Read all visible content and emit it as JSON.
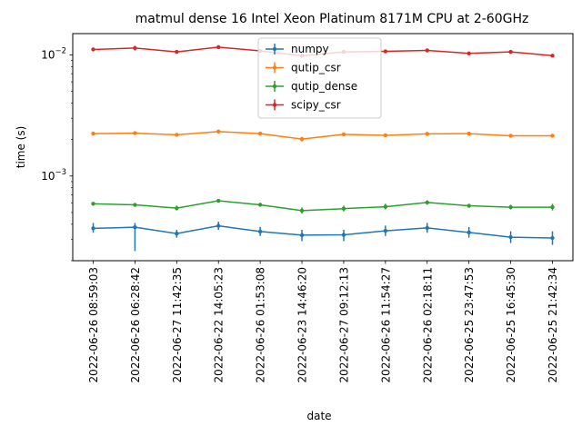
{
  "chart_data": {
    "type": "line",
    "title": "matmul dense 16 Intel Xeon Platinum 8171M CPU at 2-60GHz",
    "xlabel": "date",
    "ylabel": "time (s)",
    "yscale": "log",
    "ylim": [
      0.0002,
      0.015
    ],
    "y_tick_labels": [
      {
        "value": 0.001,
        "base": "10",
        "exp": "−3"
      },
      {
        "value": 0.01,
        "base": "10",
        "exp": "−2"
      }
    ],
    "grid": false,
    "legend_position": "top-center",
    "categories": [
      "2022-06-26 08:59:03",
      "2022-06-26 06:28:42",
      "2022-06-27 11:42:35",
      "2022-06-22 14:05:23",
      "2022-06-26 01:53:08",
      "2022-06-23 14:46:20",
      "2022-06-27 09:12:13",
      "2022-06-26 11:54:27",
      "2022-06-26 02:18:11",
      "2022-06-25 23:47:53",
      "2022-06-25 16:45:30",
      "2022-06-25 21:42:34"
    ],
    "series": [
      {
        "name": "numpy",
        "color": "#1f77b4",
        "values": [
          0.00037,
          0.000378,
          0.000335,
          0.000388,
          0.000348,
          0.000325,
          0.000327,
          0.000353,
          0.000373,
          0.000342,
          0.000313,
          0.000308
        ],
        "err_low": [
          0.00034,
          0.00024,
          0.00031,
          0.00036,
          0.00032,
          0.00029,
          0.00029,
          0.00032,
          0.00034,
          0.00031,
          0.00028,
          0.00027
        ],
        "err_high": [
          0.00041,
          0.00041,
          0.00036,
          0.00042,
          0.00038,
          0.00036,
          0.00036,
          0.00039,
          0.00041,
          0.00038,
          0.00035,
          0.00035
        ]
      },
      {
        "name": "qutip_csr",
        "color": "#ff7f0e",
        "values": [
          0.00224,
          0.00226,
          0.00219,
          0.00233,
          0.00224,
          0.00202,
          0.00221,
          0.00217,
          0.00223,
          0.00224,
          0.00215,
          0.00215
        ],
        "err_low": [
          0.00222,
          0.00224,
          0.00217,
          0.0023,
          0.00221,
          0.00193,
          0.00218,
          0.00214,
          0.0022,
          0.00221,
          0.00212,
          0.00208
        ],
        "err_high": [
          0.00226,
          0.00228,
          0.00221,
          0.00236,
          0.00227,
          0.00211,
          0.00224,
          0.0022,
          0.00226,
          0.00227,
          0.00218,
          0.00222
        ]
      },
      {
        "name": "qutip_dense",
        "color": "#2ca02c",
        "values": [
          0.00059,
          0.000578,
          0.000543,
          0.000625,
          0.000579,
          0.000518,
          0.000538,
          0.000558,
          0.000605,
          0.000568,
          0.000553,
          0.000553
        ],
        "err_low": [
          0.00057,
          0.00056,
          0.00052,
          0.00061,
          0.00056,
          0.00049,
          0.00051,
          0.00053,
          0.00058,
          0.00055,
          0.00053,
          0.00052
        ],
        "err_high": [
          0.00061,
          0.0006,
          0.00057,
          0.00064,
          0.0006,
          0.00055,
          0.00057,
          0.00059,
          0.00063,
          0.00059,
          0.00058,
          0.00059
        ]
      },
      {
        "name": "scipy_csr",
        "color": "#d62728",
        "values": [
          0.0111,
          0.0114,
          0.0106,
          0.0116,
          0.0108,
          0.00985,
          0.0106,
          0.0107,
          0.0109,
          0.0103,
          0.0106,
          0.00986
        ],
        "err_low": [
          0.0109,
          0.0109,
          0.0104,
          0.0113,
          0.0105,
          0.0096,
          0.0104,
          0.0105,
          0.0107,
          0.0101,
          0.0104,
          0.0096
        ],
        "err_high": [
          0.0113,
          0.0119,
          0.0108,
          0.0119,
          0.0111,
          0.0101,
          0.0108,
          0.0109,
          0.0111,
          0.0105,
          0.0108,
          0.0101
        ]
      }
    ]
  }
}
